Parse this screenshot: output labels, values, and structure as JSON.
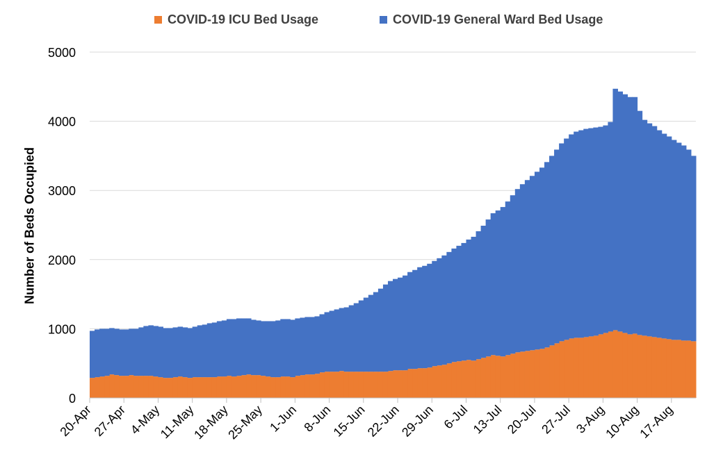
{
  "chart_data": {
    "type": "area",
    "stacked": true,
    "title": "",
    "xlabel": "",
    "ylabel": "Number of Beds Occupied",
    "ylim": [
      0,
      5000
    ],
    "yticks": [
      0,
      1000,
      2000,
      3000,
      4000,
      5000
    ],
    "grid": true,
    "legend_position": "top",
    "tick_labels": [
      "20-Apr",
      "27-Apr",
      "4-May",
      "11-May",
      "18-May",
      "25-May",
      "1-Jun",
      "8-Jun",
      "15-Jun",
      "22-Jun",
      "29-Jun",
      "6-Jul",
      "13-Jul",
      "20-Jul",
      "27-Jul",
      "3-Aug",
      "10-Aug",
      "17-Aug"
    ],
    "start_date": "20-Apr",
    "days": 124,
    "series": [
      {
        "name": "COVID-19 ICU Bed Usage",
        "color": "#ED7D31",
        "values": [
          290,
          300,
          310,
          320,
          340,
          330,
          320,
          320,
          330,
          320,
          320,
          320,
          320,
          310,
          300,
          290,
          290,
          300,
          310,
          300,
          290,
          300,
          300,
          300,
          300,
          300,
          310,
          310,
          320,
          310,
          320,
          330,
          340,
          330,
          330,
          320,
          310,
          300,
          300,
          310,
          310,
          300,
          320,
          330,
          340,
          340,
          350,
          370,
          380,
          380,
          380,
          390,
          380,
          380,
          380,
          380,
          380,
          380,
          380,
          380,
          380,
          390,
          400,
          400,
          400,
          420,
          420,
          430,
          430,
          440,
          460,
          470,
          480,
          500,
          520,
          530,
          540,
          550,
          540,
          560,
          580,
          600,
          620,
          610,
          600,
          620,
          640,
          660,
          670,
          680,
          690,
          700,
          710,
          730,
          760,
          790,
          820,
          840,
          860,
          870,
          870,
          880,
          890,
          900,
          920,
          940,
          960,
          980,
          960,
          940,
          920,
          930,
          910,
          900,
          890,
          880,
          870,
          860,
          850,
          840,
          840,
          830,
          830,
          820
        ]
      },
      {
        "name": "COVID-19 General Ward Bed Usage",
        "color": "#4472C4",
        "values": [
          680,
          690,
          690,
          680,
          670,
          670,
          670,
          670,
          670,
          680,
          700,
          720,
          730,
          730,
          730,
          720,
          720,
          720,
          720,
          720,
          720,
          730,
          750,
          760,
          780,
          790,
          800,
          810,
          820,
          830,
          830,
          820,
          810,
          800,
          790,
          790,
          800,
          810,
          820,
          830,
          830,
          830,
          830,
          830,
          830,
          830,
          830,
          840,
          860,
          880,
          900,
          910,
          930,
          960,
          990,
          1030,
          1070,
          1110,
          1150,
          1200,
          1260,
          1300,
          1320,
          1340,
          1370,
          1400,
          1430,
          1460,
          1480,
          1500,
          1520,
          1550,
          1580,
          1610,
          1640,
          1670,
          1700,
          1740,
          1790,
          1850,
          1910,
          1980,
          2050,
          2100,
          2160,
          2220,
          2290,
          2360,
          2420,
          2470,
          2520,
          2570,
          2620,
          2680,
          2740,
          2800,
          2860,
          2910,
          2950,
          2980,
          3000,
          3010,
          3010,
          3010,
          3000,
          3000,
          3030,
          3490,
          3470,
          3450,
          3430,
          3420,
          3240,
          3120,
          3080,
          3050,
          3000,
          2960,
          2930,
          2890,
          2850,
          2820,
          2760,
          2680
        ]
      }
    ]
  }
}
